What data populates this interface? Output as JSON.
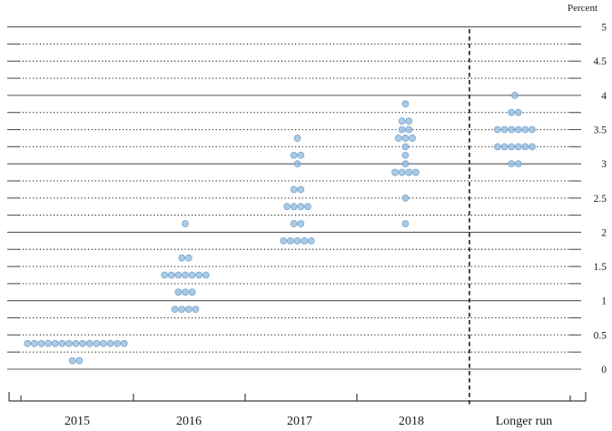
{
  "page": {
    "background": "#ffffff"
  },
  "chart_data": {
    "type": "scatter",
    "subtype": "fomc-dot-plot",
    "title": "",
    "xlabel": "",
    "ylabel": "Percent",
    "ylim": [
      0,
      5
    ],
    "grid_minor_step": 0.25,
    "grid_style": "solid lines at whole percents, dotted lines at quarter points with short solid end caps",
    "legend": "none",
    "y_tick_labels": [
      "0",
      "0.5",
      "1",
      "1.5",
      "2",
      "2.5",
      "3",
      "3.5",
      "4",
      "4.5",
      "5"
    ],
    "categories": [
      "2015",
      "2016",
      "2017",
      "2018",
      "Longer run"
    ],
    "separator_note": "dashed vertical line between 2018 and Longer run",
    "series": [
      {
        "category": "2015",
        "dots": [
          {
            "rate": 0.375,
            "count": 15
          },
          {
            "rate": 0.125,
            "count": 2
          }
        ]
      },
      {
        "category": "2016",
        "dots": [
          {
            "rate": 2.125,
            "count": 1
          },
          {
            "rate": 1.625,
            "count": 2
          },
          {
            "rate": 1.375,
            "count": 7
          },
          {
            "rate": 1.125,
            "count": 3
          },
          {
            "rate": 0.875,
            "count": 4
          }
        ]
      },
      {
        "category": "2017",
        "dots": [
          {
            "rate": 3.375,
            "count": 1
          },
          {
            "rate": 3.125,
            "count": 2
          },
          {
            "rate": 3.0,
            "count": 1
          },
          {
            "rate": 2.625,
            "count": 2
          },
          {
            "rate": 2.375,
            "count": 4
          },
          {
            "rate": 2.125,
            "count": 2
          },
          {
            "rate": 1.875,
            "count": 5
          }
        ]
      },
      {
        "category": "2018",
        "dots": [
          {
            "rate": 3.875,
            "count": 1
          },
          {
            "rate": 3.625,
            "count": 2
          },
          {
            "rate": 3.5,
            "count": 2
          },
          {
            "rate": 3.375,
            "count": 3
          },
          {
            "rate": 3.25,
            "count": 1
          },
          {
            "rate": 3.125,
            "count": 1
          },
          {
            "rate": 3.0,
            "count": 1
          },
          {
            "rate": 2.875,
            "count": 4
          },
          {
            "rate": 2.5,
            "count": 1
          },
          {
            "rate": 2.125,
            "count": 1
          }
        ]
      },
      {
        "category": "Longer run",
        "dots": [
          {
            "rate": 4.0,
            "count": 1
          },
          {
            "rate": 3.75,
            "count": 2
          },
          {
            "rate": 3.5,
            "count": 6
          },
          {
            "rate": 3.25,
            "count": 6
          },
          {
            "rate": 3.0,
            "count": 2
          }
        ]
      }
    ],
    "colors": {
      "dot_fill": "#97bedf",
      "dot_border": "#6f9fc9",
      "solid_grid": "#555555",
      "dotted_grid": "#2b2b2b",
      "axis": "#3c3c3c",
      "separator": "#1a1a1a",
      "text": "#1a1a1a"
    }
  }
}
